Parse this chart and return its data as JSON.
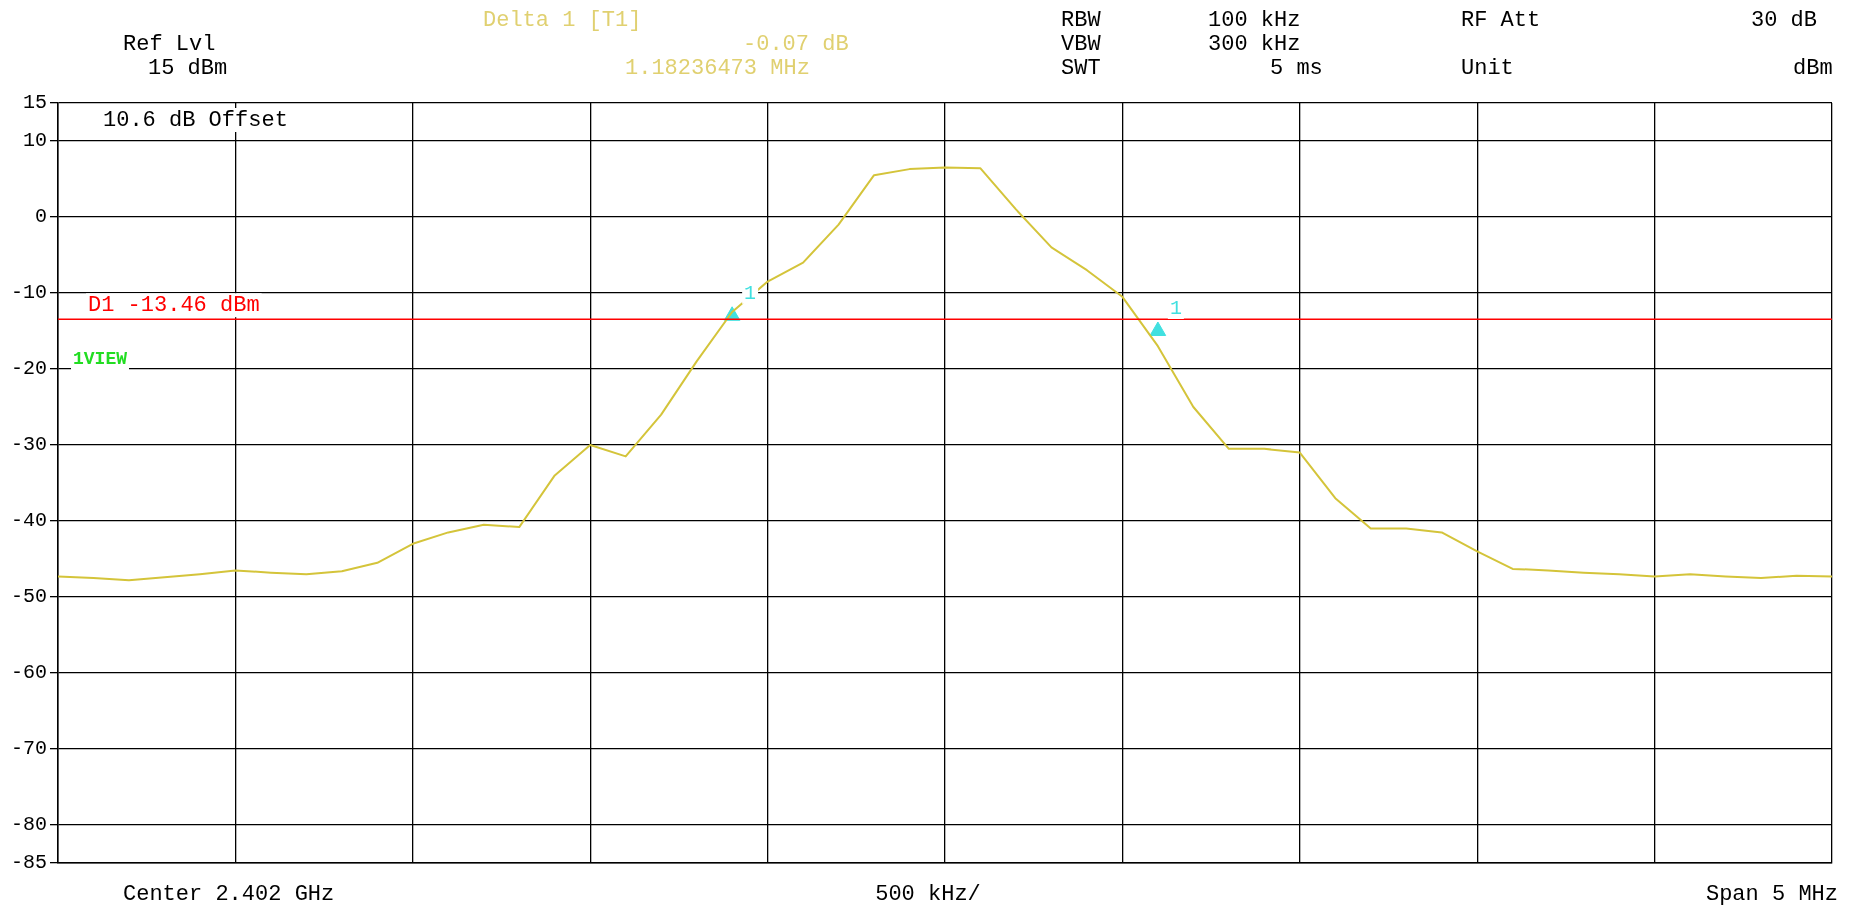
{
  "chart_data": {
    "type": "line",
    "categories": [
      null,
      null,
      null,
      null,
      null,
      null,
      null,
      null,
      null,
      null,
      null,
      null,
      null,
      null,
      null,
      null,
      null,
      null,
      null,
      null,
      null,
      null,
      null,
      null,
      null,
      null,
      null,
      null,
      null,
      null,
      null,
      null,
      null,
      null,
      null,
      null,
      null,
      null,
      null,
      null,
      null,
      null,
      null,
      null,
      null,
      null,
      null,
      null,
      null,
      null,
      null
    ],
    "series": [
      {
        "color": "#d4c43a",
        "values": [
          -47.3,
          -47.5,
          -47.8,
          -47.4,
          -47,
          -46.5,
          -46.8,
          -47,
          -46.6,
          -45.5,
          -43,
          -41.5,
          -40.5,
          -40.8,
          -34,
          -30,
          -31.5,
          -26,
          -19,
          -12.5,
          -8.5,
          -6,
          -1,
          5.5,
          6.3,
          6.5,
          6.4,
          1,
          -4,
          -7,
          -10.5,
          -17,
          -25,
          -30.5,
          -30.5,
          -31,
          -37,
          -41,
          -41,
          -41.5,
          -44,
          -46.3,
          -46.5,
          -46.8,
          -47,
          -47.3,
          -47,
          -47.3,
          -47.5,
          -47.2,
          -47.3
        ]
      },
      {
        "type": "scatter",
        "color": "#40e0e0",
        "marker": "triangle",
        "values": [
          null,
          null,
          null,
          null,
          null,
          null,
          null,
          null,
          null,
          null,
          null,
          null,
          null,
          null,
          null,
          null,
          null,
          null,
          null,
          -13,
          null,
          null,
          null,
          null,
          null,
          null,
          null,
          null,
          null,
          null,
          null,
          -15,
          null,
          null,
          null,
          null,
          null,
          null,
          null,
          null,
          null,
          null,
          null,
          null,
          null,
          null,
          null,
          null,
          null,
          null,
          null
        ]
      }
    ],
    "ylim": [
      -85,
      15
    ],
    "yticks": [
      15,
      10,
      0,
      -10,
      -20,
      -30,
      -40,
      -50,
      -60,
      -70,
      -80,
      -85
    ],
    "grid": true,
    "tick_labels": "y",
    "marker": "none",
    "ref_lines": [
      {
        "axis": "y",
        "value": -13.46,
        "label": "D1 -13.46 dBm",
        "color": "#ff0000"
      }
    ],
    "annotations": [
      "Delta 1 [T1]",
      "-0.07 dB",
      "1.18236473 MHz",
      "Ref Lvl",
      "15 dBm",
      "RBW",
      "100 kHz",
      "VBW",
      "300 kHz",
      "SWT",
      "5 ms",
      "RF Att",
      "30 dB",
      "Unit",
      "dBm",
      "10.6 dB Offset",
      "1VIEW",
      "Center 2.402 GHz",
      "500 kHz/",
      "Span 5 MHz",
      "1",
      "1"
    ]
  }
}
